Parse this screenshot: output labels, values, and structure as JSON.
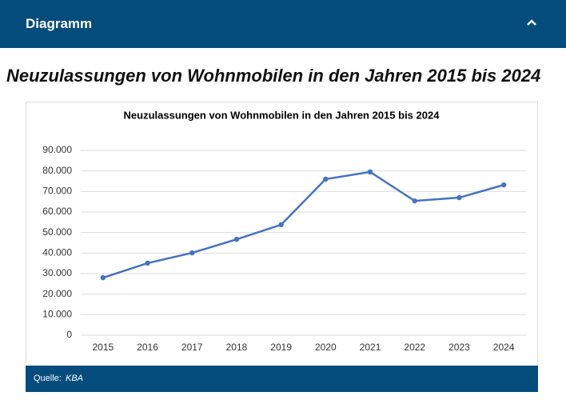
{
  "header": {
    "title": "Diagramm"
  },
  "heading": "Neuzulassungen von Wohnmobilen in den Jahren 2015 bis 2024",
  "source": {
    "label": "Quelle:",
    "name": "KBA"
  },
  "chart_data": {
    "type": "line",
    "title": "Neuzulassungen von Wohnmobilen in den Jahren 2015 bis 2024",
    "categories": [
      "2015",
      "2016",
      "2017",
      "2018",
      "2019",
      "2020",
      "2021",
      "2022",
      "2023",
      "2024"
    ],
    "values": [
      28000,
      35100,
      40100,
      46700,
      53800,
      76000,
      79500,
      65400,
      67000,
      73200
    ],
    "color": "#4472c4",
    "ylim": [
      0,
      90000
    ],
    "yticks": [
      0,
      {
        "value": 10000,
        "label": "10.000"
      },
      {
        "value": 20000,
        "label": "20.000"
      },
      {
        "value": 30000,
        "label": "30.000"
      },
      {
        "value": 40000,
        "label": "40.000"
      },
      {
        "value": 50000,
        "label": "50.000"
      },
      {
        "value": 60000,
        "label": "60.000"
      },
      {
        "value": 70000,
        "label": "70.000"
      },
      {
        "value": 80000,
        "label": "80.000"
      },
      {
        "value": 90000,
        "label": "90.000"
      }
    ],
    "grid": true
  }
}
